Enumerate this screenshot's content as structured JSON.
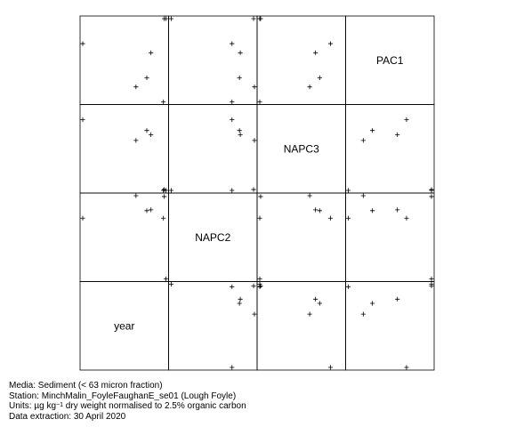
{
  "chart_data": {
    "type": "scatter-matrix",
    "variables": [
      "year",
      "NAPC2",
      "NAPC3",
      "PAC1"
    ],
    "points": [
      {
        "year": 0.0,
        "NAPC2": 0.73,
        "NAPC3": 0.85,
        "PAC1": 0.7
      },
      {
        "year": 0.64,
        "NAPC2": 1.0,
        "NAPC3": 0.6,
        "PAC1": 0.18
      },
      {
        "year": 0.77,
        "NAPC2": 0.82,
        "NAPC3": 0.72,
        "PAC1": 0.29
      },
      {
        "year": 0.82,
        "NAPC2": 0.83,
        "NAPC3": 0.67,
        "PAC1": 0.59
      },
      {
        "year": 0.97,
        "NAPC2": 0.73,
        "NAPC3": 0.0,
        "PAC1": 0.0
      },
      {
        "year": 0.98,
        "NAPC2": 0.99,
        "NAPC3": 0.01,
        "PAC1": 1.0
      },
      {
        "year": 1.0,
        "NAPC2": 0.0,
        "NAPC3": 0.0,
        "PAC1": 1.0
      }
    ]
  },
  "footer": {
    "media": "Media: Sediment (< 63 micron fraction)",
    "station": "Station: MinchMalin_FoyleFaughanE_se01 (Lough Foyle)",
    "units_prefix": "Units:  µg kg",
    "units_sup": "−1",
    "units_suffix": " dry weight normalised to 2.5% organic carbon",
    "extraction": "Data extraction: 30 April 2020"
  }
}
